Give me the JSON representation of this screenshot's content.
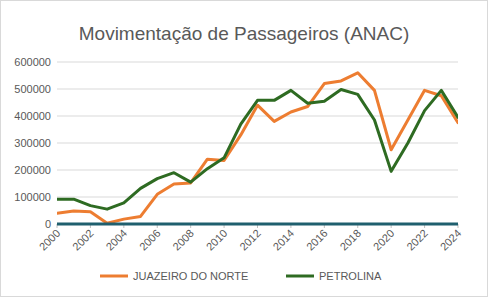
{
  "chart_data": {
    "type": "line",
    "title": "Movimentação de Passageiros (ANAC)",
    "x": [
      2000,
      2001,
      2002,
      2003,
      2004,
      2005,
      2006,
      2007,
      2008,
      2009,
      2010,
      2011,
      2012,
      2013,
      2014,
      2015,
      2016,
      2017,
      2018,
      2019,
      2020,
      2021,
      2022,
      2023,
      2024
    ],
    "series": [
      {
        "name": "JUAZEIRO DO NORTE",
        "color": "#ed7d31",
        "values": [
          40000,
          48000,
          45000,
          3000,
          18000,
          28000,
          110000,
          148000,
          152000,
          240000,
          235000,
          330000,
          440000,
          380000,
          415000,
          435000,
          520000,
          530000,
          560000,
          495000,
          275000,
          385000,
          495000,
          475000,
          375000
        ]
      },
      {
        "name": "PETROLINA",
        "color": "#2e6b22",
        "values": [
          92000,
          92000,
          68000,
          55000,
          78000,
          132000,
          168000,
          190000,
          155000,
          205000,
          245000,
          370000,
          458000,
          458000,
          495000,
          447000,
          455000,
          498000,
          480000,
          385000,
          195000,
          300000,
          420000,
          495000,
          395000
        ]
      }
    ],
    "xlim": [
      2000,
      2024
    ],
    "xticks": [
      2000,
      2002,
      2004,
      2006,
      2008,
      2010,
      2012,
      2014,
      2016,
      2018,
      2020,
      2022,
      2024
    ],
    "ylim": [
      0,
      600000
    ],
    "yticks": [
      0,
      100000,
      200000,
      300000,
      400000,
      500000,
      600000
    ],
    "grid": true,
    "legend": "bottom"
  }
}
